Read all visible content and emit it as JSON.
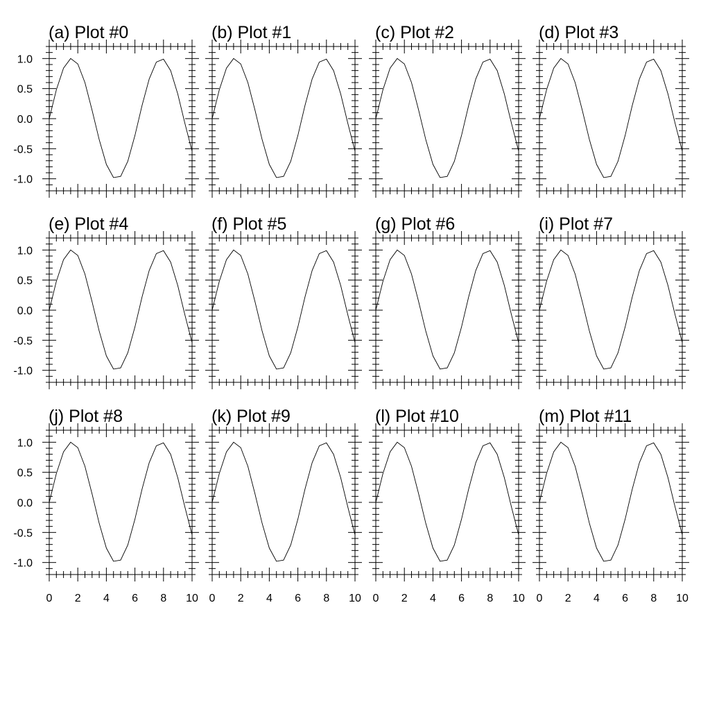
{
  "figure": {
    "background": "#ffffff",
    "line_color": "#000000"
  },
  "chart_data": [
    {
      "type": "line",
      "title": "(a) Plot #0",
      "x": [
        0,
        0.5,
        1,
        1.5,
        2,
        2.5,
        3,
        3.5,
        4,
        4.5,
        5,
        5.5,
        6,
        6.5,
        7,
        7.5,
        8,
        8.5,
        9,
        9.5,
        10
      ],
      "y": [
        0,
        0.48,
        0.84,
        1.0,
        0.91,
        0.6,
        0.14,
        -0.35,
        -0.76,
        -0.98,
        -0.96,
        -0.71,
        -0.28,
        0.22,
        0.66,
        0.94,
        0.99,
        0.8,
        0.41,
        -0.08,
        -0.54
      ],
      "xlim": [
        0,
        10
      ],
      "ylim": [
        -1.2,
        1.2
      ],
      "xticks": [
        "0",
        "2",
        "4",
        "6",
        "8",
        "10"
      ],
      "yticks": [
        "1.0",
        "0.5",
        "0.0",
        "-0.5",
        "-1.0"
      ]
    },
    {
      "type": "line",
      "title": "(b) Plot #1",
      "x": [
        0,
        0.5,
        1,
        1.5,
        2,
        2.5,
        3,
        3.5,
        4,
        4.5,
        5,
        5.5,
        6,
        6.5,
        7,
        7.5,
        8,
        8.5,
        9,
        9.5,
        10
      ],
      "y": [
        0,
        0.48,
        0.84,
        1.0,
        0.91,
        0.6,
        0.14,
        -0.35,
        -0.76,
        -0.98,
        -0.96,
        -0.71,
        -0.28,
        0.22,
        0.66,
        0.94,
        0.99,
        0.8,
        0.41,
        -0.08,
        -0.54
      ],
      "xlim": [
        0,
        10
      ],
      "ylim": [
        -1.2,
        1.2
      ],
      "xticks": [
        "0",
        "2",
        "4",
        "6",
        "8",
        "10"
      ],
      "yticks": [
        "1.0",
        "0.5",
        "0.0",
        "-0.5",
        "-1.0"
      ]
    },
    {
      "type": "line",
      "title": "(c) Plot #2",
      "x": [
        0,
        0.5,
        1,
        1.5,
        2,
        2.5,
        3,
        3.5,
        4,
        4.5,
        5,
        5.5,
        6,
        6.5,
        7,
        7.5,
        8,
        8.5,
        9,
        9.5,
        10
      ],
      "y": [
        0,
        0.48,
        0.84,
        1.0,
        0.91,
        0.6,
        0.14,
        -0.35,
        -0.76,
        -0.98,
        -0.96,
        -0.71,
        -0.28,
        0.22,
        0.66,
        0.94,
        0.99,
        0.8,
        0.41,
        -0.08,
        -0.54
      ],
      "xlim": [
        0,
        10
      ],
      "ylim": [
        -1.2,
        1.2
      ],
      "xticks": [
        "0",
        "2",
        "4",
        "6",
        "8",
        "10"
      ],
      "yticks": [
        "1.0",
        "0.5",
        "0.0",
        "-0.5",
        "-1.0"
      ]
    },
    {
      "type": "line",
      "title": "(d) Plot #3",
      "x": [
        0,
        0.5,
        1,
        1.5,
        2,
        2.5,
        3,
        3.5,
        4,
        4.5,
        5,
        5.5,
        6,
        6.5,
        7,
        7.5,
        8,
        8.5,
        9,
        9.5,
        10
      ],
      "y": [
        0,
        0.48,
        0.84,
        1.0,
        0.91,
        0.6,
        0.14,
        -0.35,
        -0.76,
        -0.98,
        -0.96,
        -0.71,
        -0.28,
        0.22,
        0.66,
        0.94,
        0.99,
        0.8,
        0.41,
        -0.08,
        -0.54
      ],
      "xlim": [
        0,
        10
      ],
      "ylim": [
        -1.2,
        1.2
      ],
      "xticks": [
        "0",
        "2",
        "4",
        "6",
        "8",
        "10"
      ],
      "yticks": [
        "1.0",
        "0.5",
        "0.0",
        "-0.5",
        "-1.0"
      ]
    },
    {
      "type": "line",
      "title": "(e) Plot #4",
      "x": [
        0,
        0.5,
        1,
        1.5,
        2,
        2.5,
        3,
        3.5,
        4,
        4.5,
        5,
        5.5,
        6,
        6.5,
        7,
        7.5,
        8,
        8.5,
        9,
        9.5,
        10
      ],
      "y": [
        0,
        0.48,
        0.84,
        1.0,
        0.91,
        0.6,
        0.14,
        -0.35,
        -0.76,
        -0.98,
        -0.96,
        -0.71,
        -0.28,
        0.22,
        0.66,
        0.94,
        0.99,
        0.8,
        0.41,
        -0.08,
        -0.54
      ],
      "xlim": [
        0,
        10
      ],
      "ylim": [
        -1.2,
        1.2
      ],
      "xticks": [
        "0",
        "2",
        "4",
        "6",
        "8",
        "10"
      ],
      "yticks": [
        "1.0",
        "0.5",
        "0.0",
        "-0.5",
        "-1.0"
      ]
    },
    {
      "type": "line",
      "title": "(f) Plot #5",
      "x": [
        0,
        0.5,
        1,
        1.5,
        2,
        2.5,
        3,
        3.5,
        4,
        4.5,
        5,
        5.5,
        6,
        6.5,
        7,
        7.5,
        8,
        8.5,
        9,
        9.5,
        10
      ],
      "y": [
        0,
        0.48,
        0.84,
        1.0,
        0.91,
        0.6,
        0.14,
        -0.35,
        -0.76,
        -0.98,
        -0.96,
        -0.71,
        -0.28,
        0.22,
        0.66,
        0.94,
        0.99,
        0.8,
        0.41,
        -0.08,
        -0.54
      ],
      "xlim": [
        0,
        10
      ],
      "ylim": [
        -1.2,
        1.2
      ],
      "xticks": [
        "0",
        "2",
        "4",
        "6",
        "8",
        "10"
      ],
      "yticks": [
        "1.0",
        "0.5",
        "0.0",
        "-0.5",
        "-1.0"
      ]
    },
    {
      "type": "line",
      "title": "(g) Plot #6",
      "x": [
        0,
        0.5,
        1,
        1.5,
        2,
        2.5,
        3,
        3.5,
        4,
        4.5,
        5,
        5.5,
        6,
        6.5,
        7,
        7.5,
        8,
        8.5,
        9,
        9.5,
        10
      ],
      "y": [
        0,
        0.48,
        0.84,
        1.0,
        0.91,
        0.6,
        0.14,
        -0.35,
        -0.76,
        -0.98,
        -0.96,
        -0.71,
        -0.28,
        0.22,
        0.66,
        0.94,
        0.99,
        0.8,
        0.41,
        -0.08,
        -0.54
      ],
      "xlim": [
        0,
        10
      ],
      "ylim": [
        -1.2,
        1.2
      ],
      "xticks": [
        "0",
        "2",
        "4",
        "6",
        "8",
        "10"
      ],
      "yticks": [
        "1.0",
        "0.5",
        "0.0",
        "-0.5",
        "-1.0"
      ]
    },
    {
      "type": "line",
      "title": "(i) Plot #7",
      "x": [
        0,
        0.5,
        1,
        1.5,
        2,
        2.5,
        3,
        3.5,
        4,
        4.5,
        5,
        5.5,
        6,
        6.5,
        7,
        7.5,
        8,
        8.5,
        9,
        9.5,
        10
      ],
      "y": [
        0,
        0.48,
        0.84,
        1.0,
        0.91,
        0.6,
        0.14,
        -0.35,
        -0.76,
        -0.98,
        -0.96,
        -0.71,
        -0.28,
        0.22,
        0.66,
        0.94,
        0.99,
        0.8,
        0.41,
        -0.08,
        -0.54
      ],
      "xlim": [
        0,
        10
      ],
      "ylim": [
        -1.2,
        1.2
      ],
      "xticks": [
        "0",
        "2",
        "4",
        "6",
        "8",
        "10"
      ],
      "yticks": [
        "1.0",
        "0.5",
        "0.0",
        "-0.5",
        "-1.0"
      ]
    },
    {
      "type": "line",
      "title": "(j) Plot #8",
      "x": [
        0,
        0.5,
        1,
        1.5,
        2,
        2.5,
        3,
        3.5,
        4,
        4.5,
        5,
        5.5,
        6,
        6.5,
        7,
        7.5,
        8,
        8.5,
        9,
        9.5,
        10
      ],
      "y": [
        0,
        0.48,
        0.84,
        1.0,
        0.91,
        0.6,
        0.14,
        -0.35,
        -0.76,
        -0.98,
        -0.96,
        -0.71,
        -0.28,
        0.22,
        0.66,
        0.94,
        0.99,
        0.8,
        0.41,
        -0.08,
        -0.54
      ],
      "xlim": [
        0,
        10
      ],
      "ylim": [
        -1.2,
        1.2
      ],
      "xticks": [
        "0",
        "2",
        "4",
        "6",
        "8",
        "10"
      ],
      "yticks": [
        "1.0",
        "0.5",
        "0.0",
        "-0.5",
        "-1.0"
      ]
    },
    {
      "type": "line",
      "title": "(k) Plot #9",
      "x": [
        0,
        0.5,
        1,
        1.5,
        2,
        2.5,
        3,
        3.5,
        4,
        4.5,
        5,
        5.5,
        6,
        6.5,
        7,
        7.5,
        8,
        8.5,
        9,
        9.5,
        10
      ],
      "y": [
        0,
        0.48,
        0.84,
        1.0,
        0.91,
        0.6,
        0.14,
        -0.35,
        -0.76,
        -0.98,
        -0.96,
        -0.71,
        -0.28,
        0.22,
        0.66,
        0.94,
        0.99,
        0.8,
        0.41,
        -0.08,
        -0.54
      ],
      "xlim": [
        0,
        10
      ],
      "ylim": [
        -1.2,
        1.2
      ],
      "xticks": [
        "0",
        "2",
        "4",
        "6",
        "8",
        "10"
      ],
      "yticks": [
        "1.0",
        "0.5",
        "0.0",
        "-0.5",
        "-1.0"
      ]
    },
    {
      "type": "line",
      "title": "(l) Plot #10",
      "x": [
        0,
        0.5,
        1,
        1.5,
        2,
        2.5,
        3,
        3.5,
        4,
        4.5,
        5,
        5.5,
        6,
        6.5,
        7,
        7.5,
        8,
        8.5,
        9,
        9.5,
        10
      ],
      "y": [
        0,
        0.48,
        0.84,
        1.0,
        0.91,
        0.6,
        0.14,
        -0.35,
        -0.76,
        -0.98,
        -0.96,
        -0.71,
        -0.28,
        0.22,
        0.66,
        0.94,
        0.99,
        0.8,
        0.41,
        -0.08,
        -0.54
      ],
      "xlim": [
        0,
        10
      ],
      "ylim": [
        -1.2,
        1.2
      ],
      "xticks": [
        "0",
        "2",
        "4",
        "6",
        "8",
        "10"
      ],
      "yticks": [
        "1.0",
        "0.5",
        "0.0",
        "-0.5",
        "-1.0"
      ]
    },
    {
      "type": "line",
      "title": "(m) Plot #11",
      "x": [
        0,
        0.5,
        1,
        1.5,
        2,
        2.5,
        3,
        3.5,
        4,
        4.5,
        5,
        5.5,
        6,
        6.5,
        7,
        7.5,
        8,
        8.5,
        9,
        9.5,
        10
      ],
      "y": [
        0,
        0.48,
        0.84,
        1.0,
        0.91,
        0.6,
        0.14,
        -0.35,
        -0.76,
        -0.98,
        -0.96,
        -0.71,
        -0.28,
        0.22,
        0.66,
        0.94,
        0.99,
        0.8,
        0.41,
        -0.08,
        -0.54
      ],
      "xlim": [
        0,
        10
      ],
      "ylim": [
        -1.2,
        1.2
      ],
      "xticks": [
        "0",
        "2",
        "4",
        "6",
        "8",
        "10"
      ],
      "yticks": [
        "1.0",
        "0.5",
        "0.0",
        "-0.5",
        "-1.0"
      ]
    }
  ]
}
